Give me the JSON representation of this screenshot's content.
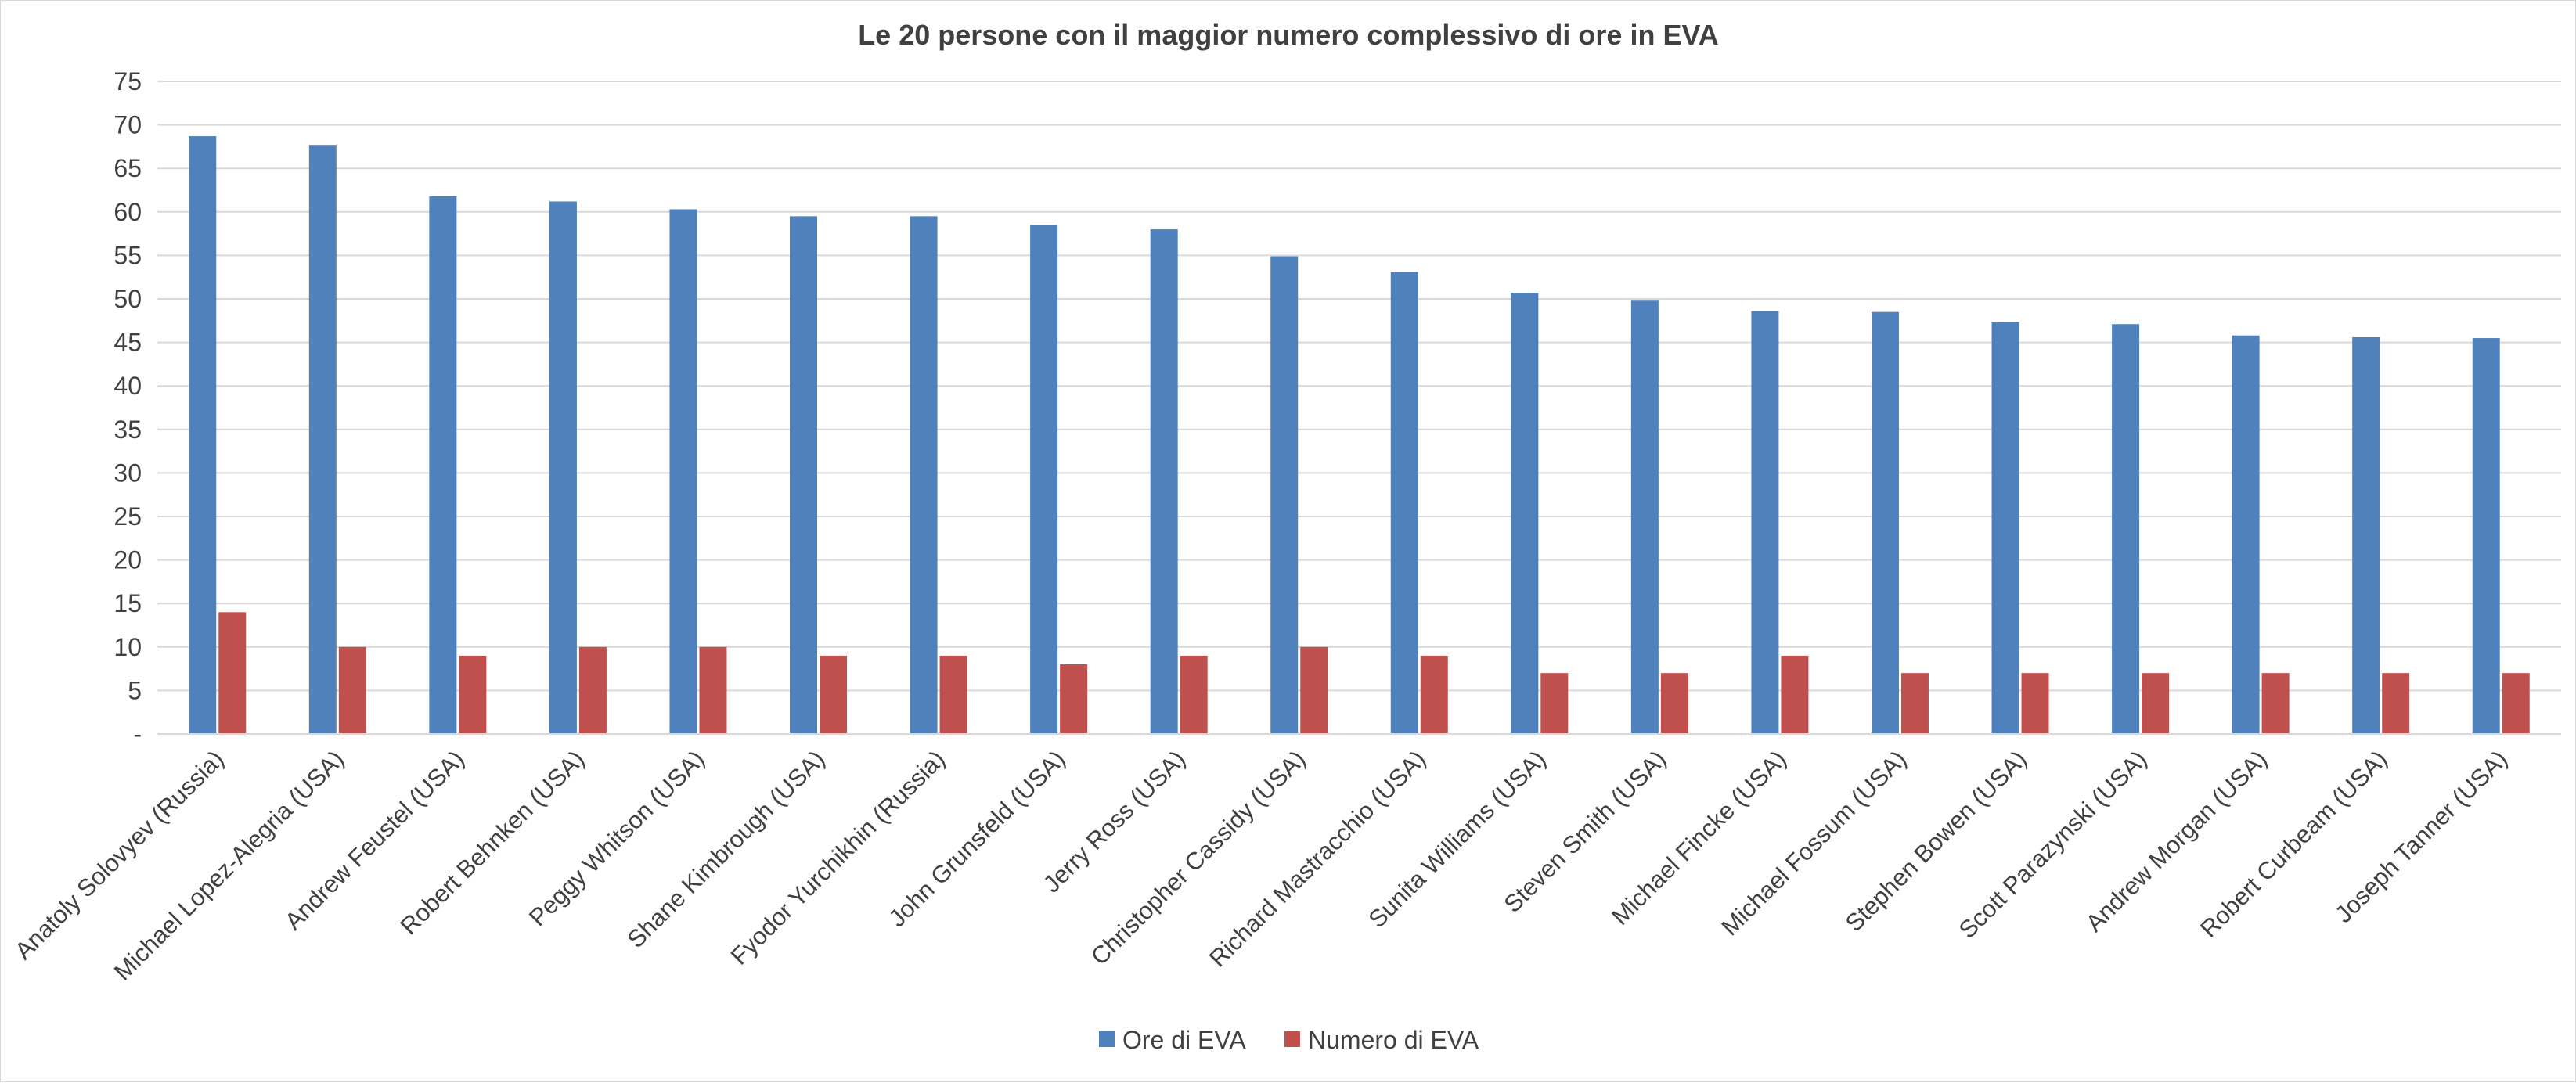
{
  "chart_data": {
    "type": "bar",
    "title": "Le 20 persone con il maggior numero complessivo di ore in EVA",
    "xlabel": "",
    "ylabel": "",
    "ylim": [
      0,
      75
    ],
    "yticks": [
      0,
      5,
      10,
      15,
      20,
      25,
      30,
      35,
      40,
      45,
      50,
      55,
      60,
      65,
      70,
      75
    ],
    "ytick_labels": [
      "-",
      "5",
      "10",
      "15",
      "20",
      "25",
      "30",
      "35",
      "40",
      "45",
      "50",
      "55",
      "60",
      "65",
      "70",
      "75"
    ],
    "grid": true,
    "legend_position": "bottom",
    "categories": [
      "Anatoly Solovyev (Russia)",
      "Michael Lopez-Alegria (USA)",
      "Andrew Feustel (USA)",
      "Robert Behnken (USA)",
      "Peggy Whitson (USA)",
      "Shane Kimbrough (USA)",
      "Fyodor Yurchikhin (Russia)",
      "John Grunsfeld (USA)",
      "Jerry Ross (USA)",
      "Christopher Cassidy (USA)",
      "Richard Mastracchio (USA)",
      "Sunita Williams (USA)",
      "Steven Smith (USA)",
      "Michael Fincke (USA)",
      "Michael Fossum (USA)",
      "Stephen Bowen (USA)",
      "Scott Parazynski (USA)",
      "Andrew Morgan (USA)",
      "Robert Curbeam (USA)",
      "Joseph Tanner (USA)"
    ],
    "series": [
      {
        "name": "Ore di EVA",
        "color": "#4f81bd",
        "values": [
          68.7,
          67.7,
          61.8,
          61.2,
          60.3,
          59.5,
          59.5,
          58.5,
          58.0,
          54.9,
          53.1,
          50.7,
          49.8,
          48.6,
          48.5,
          47.3,
          47.1,
          45.8,
          45.6,
          45.5
        ]
      },
      {
        "name": "Numero di EVA",
        "color": "#c0504d",
        "values": [
          14,
          10,
          9,
          10,
          10,
          9,
          9,
          8,
          9,
          10,
          9,
          7,
          7,
          9,
          7,
          7,
          7,
          7,
          7,
          7
        ]
      }
    ]
  }
}
